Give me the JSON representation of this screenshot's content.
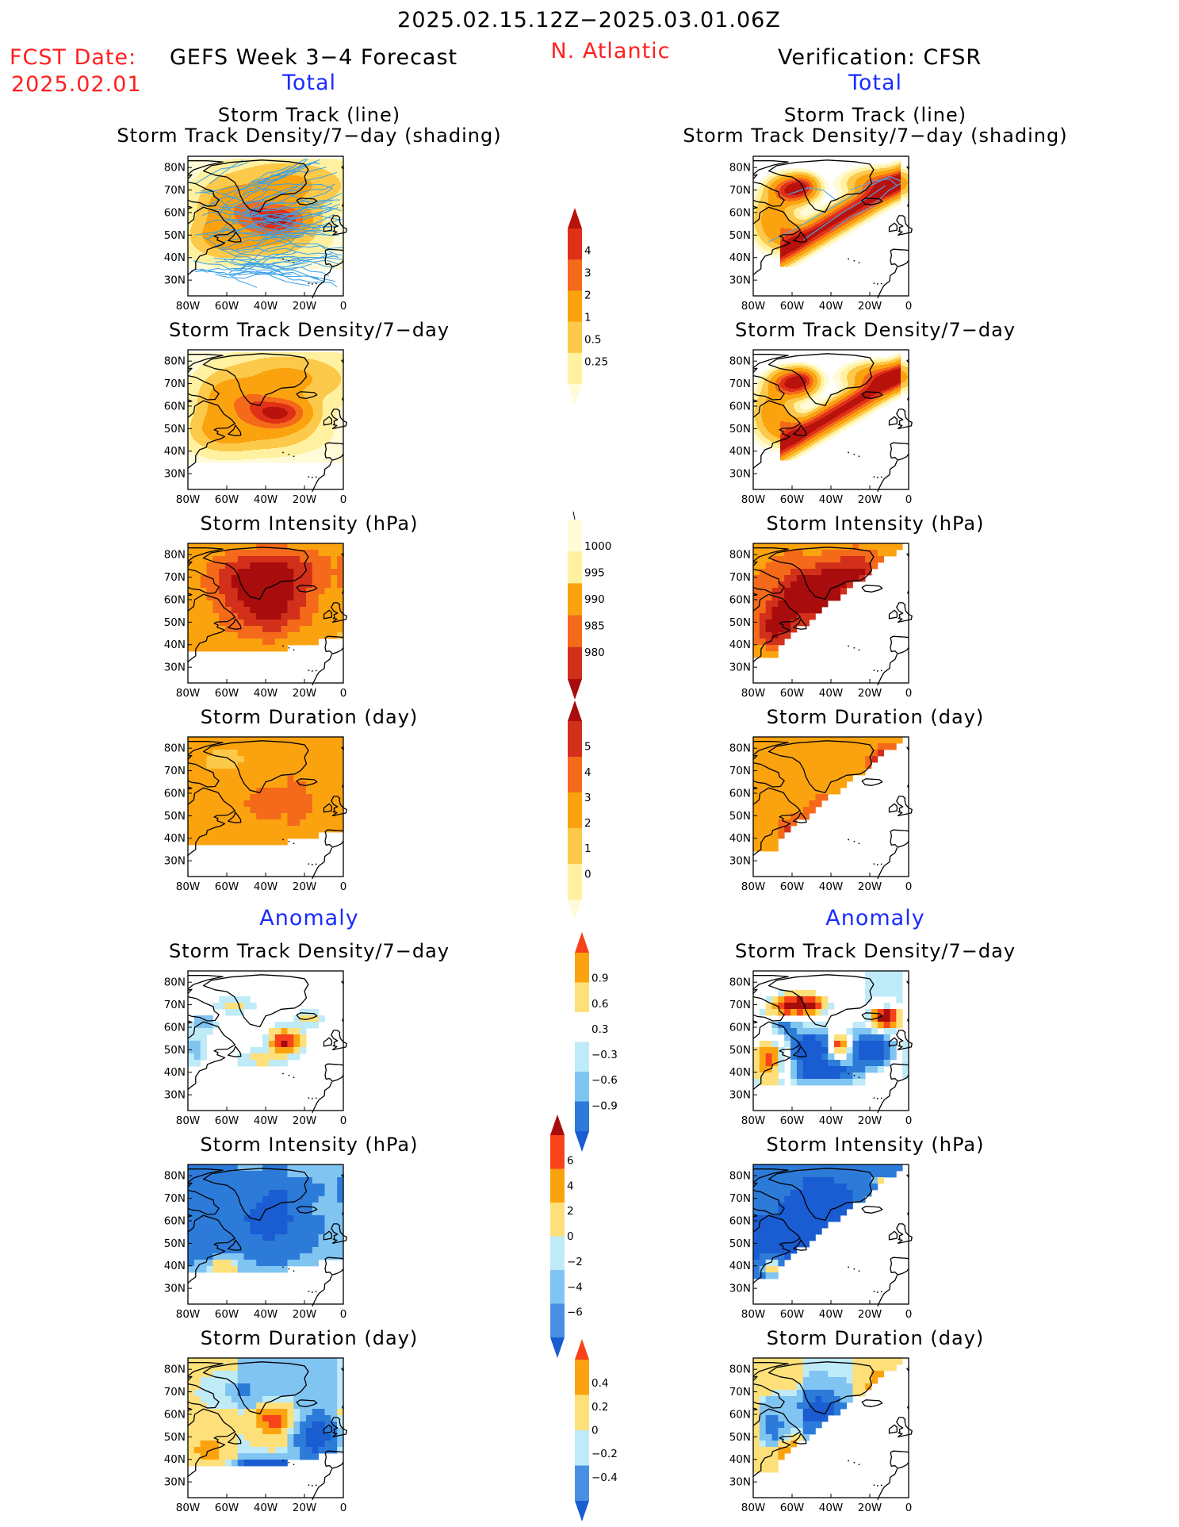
{
  "header": {
    "period": "2025.02.15.12Z−2025.03.01.06Z",
    "fcst_label": "FCST Date:",
    "fcst_date": "2025.02.01",
    "forecast_title": "GEFS Week 3−4 Forecast",
    "region": "N. Atlantic",
    "verification": "Verification: CFSR"
  },
  "sections": {
    "total": "Total",
    "anomaly": "Anomaly"
  },
  "titles": {
    "track_line": "Storm Track (line)",
    "density_shading": "Storm Track Density/7−day (shading)",
    "density": "Storm Track Density/7−day",
    "intensity": "Storm Intensity (hPa)",
    "duration": "Storm Duration (day)"
  },
  "axes": {
    "lat_ticks": [
      "80N",
      "70N",
      "60N",
      "50N",
      "40N",
      "30N"
    ],
    "lon_ticks": [
      "80W",
      "60W",
      "40W",
      "20W",
      "0"
    ]
  },
  "colorbars": {
    "density_total": {
      "labels": [
        "4",
        "3",
        "2",
        "1",
        "0.5",
        "0.25"
      ],
      "colors": [
        "#b8120c",
        "#e03018",
        "#f46a1a",
        "#fba30e",
        "#fcc94a",
        "#fff1a0",
        "#fffbd8"
      ]
    },
    "intensity_total": {
      "labels": [
        "1000",
        "995",
        "990",
        "985",
        "980"
      ],
      "colors": [
        "#fffbd8",
        "#fff1a0",
        "#fba30e",
        "#f46a1a",
        "#d2301a",
        "#a80c0c"
      ]
    },
    "duration_total": {
      "labels": [
        "5",
        "4",
        "3",
        "2",
        "1",
        "0"
      ],
      "colors": [
        "#a80c0c",
        "#d2301a",
        "#f46a1a",
        "#fba30e",
        "#fcc94a",
        "#fff1a0",
        "#fffbd8"
      ]
    },
    "density_anom": {
      "labels": [
        "0.9",
        "0.6",
        "0.3",
        "−0.3",
        "−0.6",
        "−0.9"
      ],
      "colors": [
        "#f8421a",
        "#fba30e",
        "#fde07a",
        "#ffffff",
        "#bfeaf8",
        "#80c4f2",
        "#2d7bd9",
        "#1a5cd2"
      ]
    },
    "intensity_anom": {
      "labels": [
        "6",
        "4",
        "2",
        "0",
        "−2",
        "−4",
        "−6"
      ],
      "colors": [
        "#a80c0c",
        "#f8421a",
        "#fba30e",
        "#fde07a",
        "#bfeaf8",
        "#80c4f2",
        "#4a90e2",
        "#1a5cd2"
      ]
    },
    "duration_anom": {
      "labels": [
        "0.4",
        "0.2",
        "0",
        "−0.2",
        "−0.4"
      ],
      "colors": [
        "#f8421a",
        "#fba30e",
        "#fde07a",
        "#bfeaf8",
        "#4a90e2",
        "#1a5cd2"
      ]
    }
  }
}
